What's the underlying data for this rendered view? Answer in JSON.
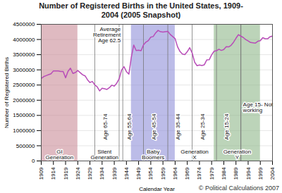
{
  "chart_data": {
    "type": "line",
    "title": "Number of Registered Births in the United States, 1909-2004 (2005 Snapshot)",
    "x_label": "Calendar Year",
    "y_label": "Number of Registered Births",
    "copyright": "© Political Calculations 2007",
    "color": "#b84cb8",
    "x": [
      1909,
      1910,
      1911,
      1912,
      1913,
      1914,
      1915,
      1916,
      1917,
      1918,
      1919,
      1920,
      1921,
      1922,
      1923,
      1924,
      1925,
      1926,
      1927,
      1928,
      1929,
      1930,
      1931,
      1932,
      1933,
      1934,
      1935,
      1936,
      1937,
      1938,
      1939,
      1940,
      1941,
      1942,
      1943,
      1944,
      1945,
      1946,
      1947,
      1948,
      1949,
      1950,
      1951,
      1952,
      1953,
      1954,
      1955,
      1956,
      1957,
      1958,
      1959,
      1960,
      1961,
      1962,
      1963,
      1964,
      1965,
      1966,
      1967,
      1968,
      1969,
      1970,
      1971,
      1972,
      1973,
      1974,
      1975,
      1976,
      1977,
      1978,
      1979,
      1980,
      1981,
      1982,
      1983,
      1984,
      1985,
      1986,
      1987,
      1988,
      1989,
      1990,
      1991,
      1992,
      1993,
      1994,
      1995,
      1996,
      1997,
      1998,
      1999,
      2000,
      2001,
      2002,
      2003,
      2004
    ],
    "values": [
      2718000,
      2777000,
      2809000,
      2840000,
      2869000,
      2966000,
      2965000,
      2964000,
      2944000,
      2948000,
      2740000,
      2950000,
      3055000,
      2882000,
      2910000,
      2979000,
      2909000,
      2839000,
      2802000,
      2674000,
      2582000,
      2618000,
      2506000,
      2440000,
      2307000,
      2396000,
      2377000,
      2355000,
      2413000,
      2496000,
      2466000,
      2559000,
      2703000,
      2989000,
      3104000,
      2939000,
      2858000,
      3411000,
      3817000,
      3637000,
      3649000,
      3632000,
      3823000,
      3913000,
      3965000,
      4078000,
      4097000,
      4218000,
      4300000,
      4255000,
      4245000,
      4258000,
      4268000,
      4167000,
      4098000,
      4027000,
      3760000,
      3606000,
      3521000,
      3502000,
      3600000,
      3731000,
      3556000,
      3258000,
      3137000,
      3160000,
      3144000,
      3168000,
      3327000,
      3333000,
      3494000,
      3612000,
      3629000,
      3681000,
      3639000,
      3669000,
      3761000,
      3757000,
      3809000,
      3910000,
      4041000,
      4158000,
      4111000,
      4065000,
      4000000,
      3953000,
      3900000,
      3891000,
      3881000,
      3942000,
      3959000,
      4059000,
      4026000,
      4022000,
      4090000,
      4112000
    ],
    "xlim": [
      1909,
      2004
    ],
    "xticks": [
      1909,
      1914,
      1919,
      1924,
      1929,
      1934,
      1939,
      1944,
      1949,
      1954,
      1959,
      1964,
      1969,
      1974,
      1979,
      1984,
      1989,
      1994,
      1999,
      2004
    ],
    "ylim": [
      0,
      4500000
    ],
    "yticks": [
      0,
      500000,
      1000000,
      1500000,
      2000000,
      2500000,
      3000000,
      3500000,
      4000000,
      4500000
    ],
    "grid": true,
    "generations": [
      {
        "label": "GI Generation",
        "start": 1909,
        "end": 1924,
        "color": "#c98c97"
      },
      {
        "label": "Silent Generation",
        "start": 1925,
        "end": 1945
      },
      {
        "label": "Baby Boomers",
        "start": 1946,
        "end": 1964,
        "color": "#8f8fd8"
      },
      {
        "label": "Generation X",
        "start": 1965,
        "end": 1979
      },
      {
        "label": "Generation Y",
        "start": 1980,
        "end": 1999,
        "color": "#8fb88a"
      }
    ],
    "age_brackets": [
      {
        "label": "Age 65-74",
        "start": 1931,
        "end": 1941
      },
      {
        "label": "Age 55-64",
        "start": 1941,
        "end": 1951
      },
      {
        "label": "Age 45-54",
        "start": 1951,
        "end": 1961
      },
      {
        "label": "Age 35-44",
        "start": 1961,
        "end": 1971
      },
      {
        "label": "Age 25-34",
        "start": 1971,
        "end": 1981
      },
      {
        "label": "Age 15-24",
        "start": 1981,
        "end": 1991
      }
    ],
    "annotations": [
      {
        "text": "Average Retirement Age 62.5",
        "x": 1942.5
      },
      {
        "text": "Age 15- Not working",
        "x": 1991
      }
    ]
  }
}
